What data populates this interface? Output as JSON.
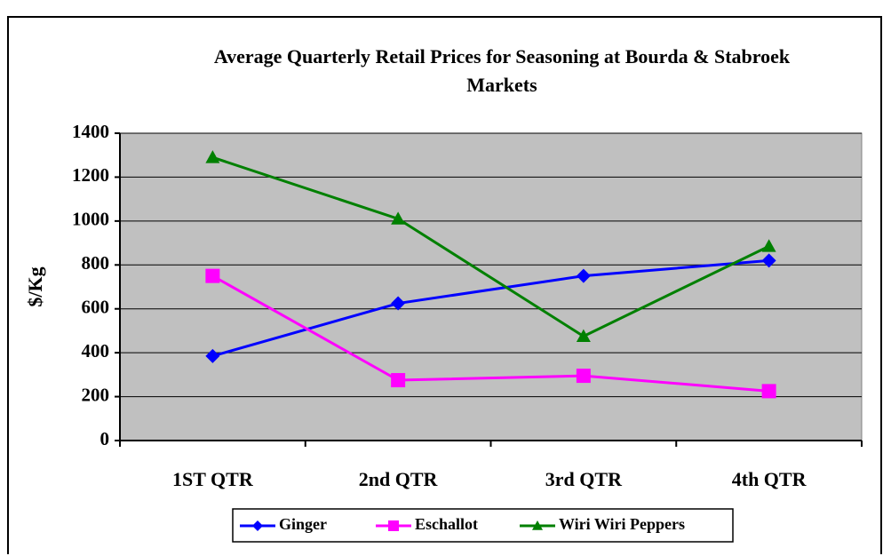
{
  "chart_data": {
    "type": "line",
    "title": "Average Quarterly Retail Prices for Seasoning at Bourda & Stabroek Markets",
    "y_label": "$/Kg",
    "categories": [
      "1ST QTR",
      "2nd QTR",
      "3rd QTR",
      "4th QTR"
    ],
    "series": [
      {
        "name": "Ginger",
        "color": "#0000ff",
        "marker": "diamond",
        "values": [
          385,
          625,
          750,
          820
        ]
      },
      {
        "name": "Eschallot",
        "color": "#ff00ff",
        "marker": "square",
        "values": [
          750,
          275,
          295,
          225
        ]
      },
      {
        "name": "Wiri Wiri Peppers",
        "color": "#008000",
        "marker": "triangle",
        "values": [
          1290,
          1010,
          475,
          885
        ]
      }
    ],
    "ylim": [
      0,
      1400
    ],
    "yticks": [
      0,
      200,
      400,
      600,
      800,
      1000,
      1200,
      1400
    ],
    "grid": true,
    "legend": "bottom"
  }
}
